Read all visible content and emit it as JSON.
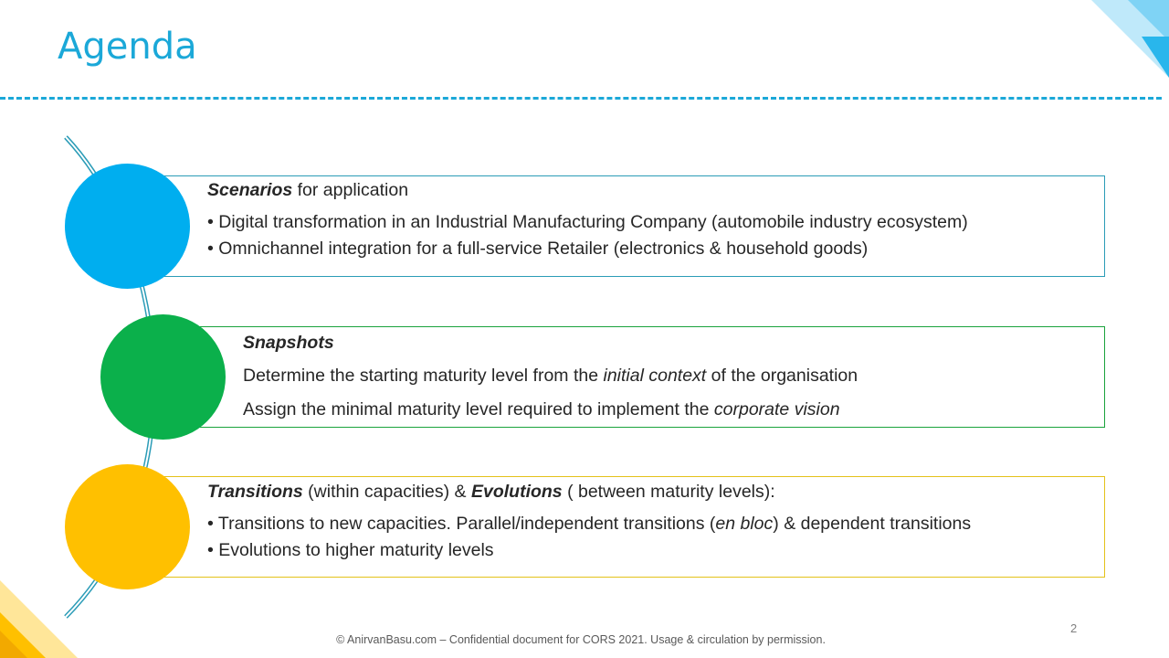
{
  "slide": {
    "title": "Agenda",
    "page_number": "2",
    "footer": "© AnirvanBasu.com – Confidential document for CORS 2021. Usage & circulation by permission."
  },
  "items": [
    {
      "color": "#00AEEF",
      "heading_em": "Scenarios",
      "heading_rest": " for application",
      "bullets": [
        "• Digital transformation in an Industrial Manufacturing Company (automobile industry ecosystem)",
        "• Omnichannel integration for a full-service Retailer (electronics & household goods)"
      ]
    },
    {
      "color": "#0BB04B",
      "heading_em": "Snapshots",
      "lines": [
        {
          "pre": "Determine the starting maturity level from the ",
          "em": "initial context",
          "post": " of the organisation"
        },
        {
          "pre": "Assign the minimal maturity level required to implement the ",
          "em": "corporate vision"
        }
      ]
    },
    {
      "color": "#FFC000",
      "heading_em_1": "Transitions",
      "heading_mid": " (within capacities) & ",
      "heading_em_2": "Evolutions",
      "heading_rest": " ( between maturity levels):",
      "bullet_1": {
        "pre": "• Transitions to new capacities. Parallel/independent transitions (",
        "em": "en bloc",
        "post": ") & dependent transitions"
      },
      "bullet_2": "• Evolutions to higher maturity levels"
    }
  ]
}
